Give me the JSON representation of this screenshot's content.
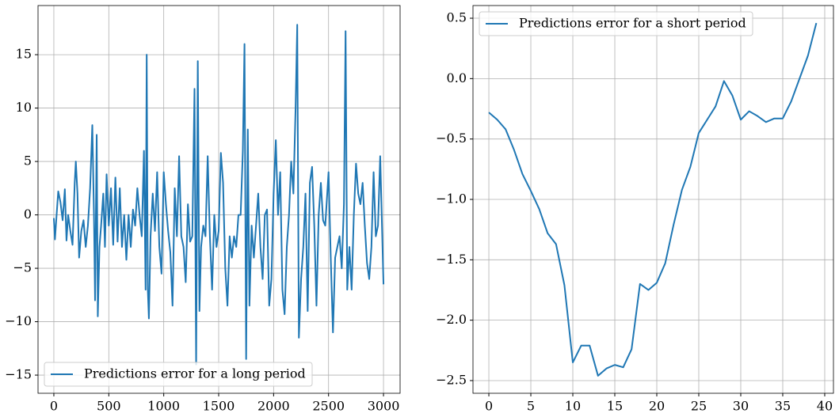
{
  "chart_data": [
    {
      "type": "line",
      "x": [
        0,
        10,
        25,
        40,
        60,
        80,
        100,
        115,
        130,
        150,
        170,
        190,
        200,
        215,
        230,
        250,
        270,
        290,
        310,
        330,
        350,
        365,
        375,
        390,
        400,
        415,
        430,
        450,
        465,
        480,
        500,
        520,
        540,
        560,
        580,
        600,
        620,
        640,
        660,
        680,
        700,
        720,
        740,
        760,
        780,
        800,
        820,
        835,
        845,
        855,
        865,
        880,
        900,
        920,
        940,
        960,
        980,
        1000,
        1020,
        1040,
        1060,
        1080,
        1100,
        1120,
        1140,
        1160,
        1180,
        1200,
        1220,
        1240,
        1260,
        1280,
        1295,
        1310,
        1325,
        1340,
        1360,
        1380,
        1400,
        1420,
        1440,
        1460,
        1480,
        1500,
        1520,
        1540,
        1560,
        1580,
        1600,
        1620,
        1640,
        1660,
        1680,
        1700,
        1720,
        1735,
        1750,
        1765,
        1780,
        1800,
        1820,
        1840,
        1860,
        1880,
        1900,
        1920,
        1940,
        1960,
        1980,
        2000,
        2020,
        2040,
        2060,
        2080,
        2100,
        2120,
        2140,
        2160,
        2180,
        2200,
        2215,
        2230,
        2250,
        2270,
        2290,
        2310,
        2330,
        2350,
        2370,
        2390,
        2410,
        2430,
        2450,
        2470,
        2500,
        2520,
        2540,
        2560,
        2580,
        2600,
        2620,
        2640,
        2655,
        2670,
        2690,
        2710,
        2730,
        2750,
        2770,
        2790,
        2810,
        2830,
        2850,
        2870,
        2890,
        2910,
        2930,
        2950,
        2970,
        3000
      ],
      "series": [
        {
          "name": "Predictions error for a long period",
          "color": "#1f77b4",
          "values": [
            -0.3,
            -2.3,
            0,
            2.2,
            1.2,
            -0.5,
            2.4,
            -2.4,
            0,
            -1.5,
            -2.8,
            3,
            5,
            2,
            -4,
            -1.5,
            -0.5,
            -3,
            -1,
            2.5,
            8.4,
            0,
            -8,
            7.5,
            -9.5,
            -3,
            -1,
            2,
            -3,
            3.8,
            -1,
            2.5,
            -2.8,
            3.5,
            -2.5,
            2.5,
            -3,
            0,
            -4.2,
            0,
            -3,
            0.5,
            -1,
            2.5,
            0,
            -2,
            6,
            -7,
            15,
            -7,
            -9.7,
            -2,
            2,
            -1.5,
            4,
            -3,
            -5.5,
            4,
            1,
            -1.5,
            -3.5,
            -8.5,
            2.5,
            -2,
            5.5,
            -2,
            -3,
            -6.3,
            1,
            -2.5,
            -2,
            11.8,
            -14,
            14.4,
            -9,
            -3,
            -1,
            -2,
            5.5,
            -2,
            -7,
            0,
            -3,
            -1.5,
            5.8,
            3,
            -5,
            -8.5,
            -2,
            -4,
            -2,
            -3,
            0,
            0,
            6,
            16,
            -13.5,
            8,
            -8.5,
            -1,
            -4,
            -1,
            2,
            -3,
            -6,
            0,
            0.5,
            -8.5,
            -6,
            2,
            7,
            0,
            4,
            -7,
            -9.3,
            -3,
            0,
            5,
            2,
            10,
            17.8,
            -11.5,
            -6,
            -3,
            2,
            -9,
            3,
            4.5,
            -1,
            -8.5,
            0,
            3,
            -0.5,
            -1,
            4,
            -4,
            -11,
            -4,
            -3,
            -2,
            -5,
            1,
            17.2,
            -7,
            -3,
            -7,
            0,
            4.8,
            2,
            1,
            3,
            -1,
            -4.5,
            -6,
            -3,
            4,
            -2,
            -1,
            5.5,
            -6.5
          ]
        }
      ],
      "xlim": [
        -144,
        3151
      ],
      "ylim": [
        -16.7,
        19.6
      ],
      "xticks": [
        0,
        500,
        1000,
        1500,
        2000,
        2500,
        3000
      ],
      "yticks": [
        {
          "value": -15,
          "label": "−15"
        },
        {
          "value": -10,
          "label": "−10"
        },
        {
          "value": -5,
          "label": "−5"
        },
        0,
        5,
        10,
        15
      ],
      "grid": true,
      "legend": "lower left"
    },
    {
      "type": "line",
      "x": [
        0,
        1,
        2,
        3,
        4,
        5,
        6,
        7,
        8,
        9,
        10,
        11,
        12,
        13,
        14,
        15,
        16,
        17,
        18,
        19,
        20,
        21,
        22,
        23,
        24,
        25,
        26,
        27,
        28,
        29,
        30,
        31,
        32,
        33,
        34,
        35,
        36,
        37,
        38,
        39
      ],
      "series": [
        {
          "name": "Predictions error for a short period",
          "color": "#1f77b4",
          "values": [
            -0.28,
            -0.34,
            -0.42,
            -0.59,
            -0.79,
            -0.93,
            -1.08,
            -1.28,
            -1.37,
            -1.71,
            -2.35,
            -2.21,
            -2.21,
            -2.46,
            -2.4,
            -2.37,
            -2.39,
            -2.24,
            -1.7,
            -1.75,
            -1.69,
            -1.53,
            -1.21,
            -0.92,
            -0.73,
            -0.45,
            -0.34,
            -0.23,
            -0.02,
            -0.14,
            -0.34,
            -0.27,
            -0.31,
            -0.36,
            -0.33,
            -0.33,
            -0.19,
            0,
            0.19,
            0.46
          ]
        }
      ],
      "xlim": [
        -1.89,
        41.04
      ],
      "ylim": [
        -2.605,
        0.605
      ],
      "xticks": [
        0,
        5,
        10,
        15,
        20,
        25,
        30,
        35,
        40
      ],
      "yticks": [
        {
          "value": -2.5,
          "label": "−2.5"
        },
        {
          "value": -2.0,
          "label": "−2.0"
        },
        {
          "value": -1.5,
          "label": "−1.5"
        },
        {
          "value": -1.0,
          "label": "−1.0"
        },
        {
          "value": -0.5,
          "label": "−0.5"
        },
        {
          "value": 0,
          "label": "0.0"
        },
        0.5
      ],
      "grid": true,
      "legend": "upper left"
    }
  ]
}
